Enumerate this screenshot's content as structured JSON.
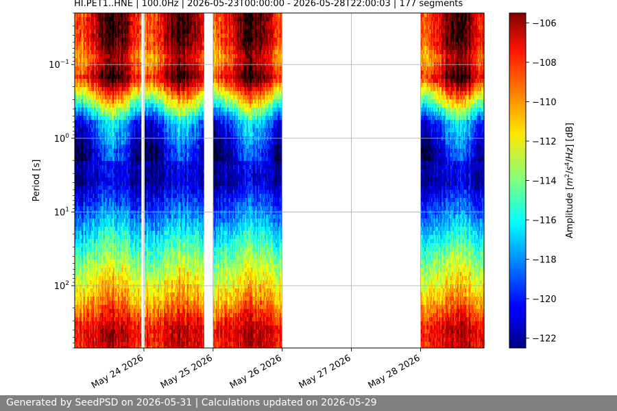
{
  "chart_data": {
    "type": "heatmap",
    "title": "HI.PET1..HNE | 100.0Hz | 2026-05-23T00:00:00 - 2026-05-28T22:00:03 | 177 segments",
    "ylabel": "Period [s]",
    "y_scale": "log",
    "y_inverted": true,
    "ylim": [
      0.02,
      700
    ],
    "y_ticks": [
      {
        "value": 0.1,
        "base": "10",
        "exp": "−1"
      },
      {
        "value": 1,
        "base": "10",
        "exp": "0"
      },
      {
        "value": 10,
        "base": "10",
        "exp": "1"
      },
      {
        "value": 100,
        "base": "10",
        "exp": "2"
      }
    ],
    "x_type": "date",
    "xlim": [
      "2026-05-23T00:00:00",
      "2026-05-28T22:00:03"
    ],
    "x_ticks": [
      {
        "value": "2026-05-24",
        "label": "May 24 2026"
      },
      {
        "value": "2026-05-25",
        "label": "May 25 2026"
      },
      {
        "value": "2026-05-26",
        "label": "May 26 2026"
      },
      {
        "value": "2026-05-27",
        "label": "May 27 2026"
      },
      {
        "value": "2026-05-28",
        "label": "May 28 2026"
      }
    ],
    "grid": true,
    "colormap": "jet",
    "colorbar": {
      "label": "Amplitude [m²/s⁴/Hz] [dB]",
      "label_parts": [
        "Amplitude [",
        "m",
        "2",
        "/",
        "s",
        "4",
        "/",
        "Hz",
        "] [dB]"
      ],
      "range": [
        -122.5,
        -105.5
      ],
      "ticks": [
        -106,
        -108,
        -110,
        -112,
        -114,
        -116,
        -118,
        -120,
        -122
      ],
      "tick_labels": [
        "−106",
        "−108",
        "−110",
        "−112",
        "−114",
        "−116",
        "−118",
        "−120",
        "−122"
      ]
    },
    "data_segments": [
      {
        "start": "2026-05-23T00:00:00",
        "end": "2026-05-23T23:00:00"
      },
      {
        "start": "2026-05-24T00:15:00",
        "end": "2026-05-24T20:45:00"
      },
      {
        "start": "2026-05-25T00:00:00",
        "end": "2026-05-25T23:45:00"
      },
      {
        "start": "2026-05-28T00:00:00",
        "end": "2026-05-28T22:00:03"
      }
    ],
    "amplitude_profile_db": {
      "periods_s": [
        0.02,
        0.05,
        0.08,
        0.15,
        0.3,
        0.6,
        1.5,
        4,
        12,
        30,
        70,
        150,
        400,
        700
      ],
      "values": [
        -106.5,
        -106.8,
        -108.5,
        -106.2,
        -112.5,
        -118.5,
        -121.0,
        -121.5,
        -118.0,
        -115.0,
        -112.5,
        -110.5,
        -107.0,
        -107.5
      ]
    },
    "diurnal_variation_db": 2.5
  },
  "footer": {
    "text": "Generated by SeedPSD on 2026-05-31 | Calculations updated on 2026-05-29"
  },
  "colors": {
    "grid": "#b0b0b0",
    "footer_bg": "#808080",
    "footer_text": "#ffffff"
  }
}
